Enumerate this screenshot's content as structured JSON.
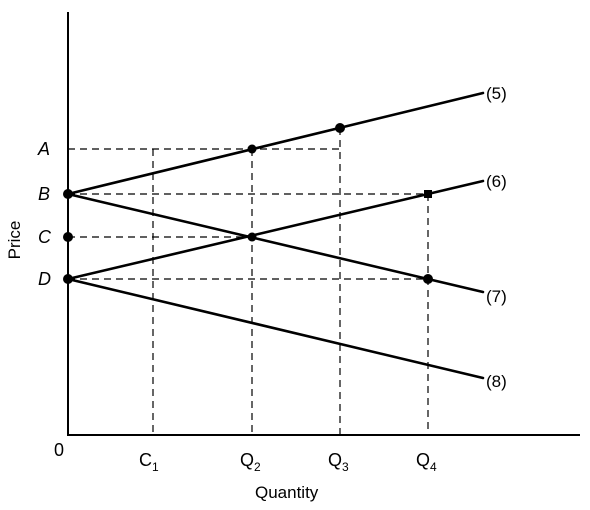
{
  "y_axis_label": "Price",
  "x_axis_label": "Quantity",
  "origin_label": "0",
  "price_levels": [
    {
      "key": "A",
      "label": "A"
    },
    {
      "key": "B",
      "label": "B"
    },
    {
      "key": "C",
      "label": "C"
    },
    {
      "key": "D",
      "label": "D"
    }
  ],
  "quantity_levels": [
    {
      "key": "C1",
      "base": "C",
      "sub": "1"
    },
    {
      "key": "Q2",
      "base": "Q",
      "sub": "2"
    },
    {
      "key": "Q3",
      "base": "Q",
      "sub": "3"
    },
    {
      "key": "Q4",
      "base": "Q",
      "sub": "4"
    }
  ],
  "curves": [
    {
      "key": "5",
      "label": "(5)",
      "from": [
        "0",
        "B"
      ],
      "direction": "up-steep"
    },
    {
      "key": "6",
      "label": "(6)",
      "from": [
        "0",
        "D"
      ],
      "direction": "up"
    },
    {
      "key": "7",
      "label": "(7)",
      "from": [
        "0",
        "B"
      ],
      "direction": "down"
    },
    {
      "key": "8",
      "label": "(8)",
      "from": [
        "0",
        "D"
      ],
      "direction": "down"
    }
  ],
  "marked_points": [
    [
      "0",
      "B"
    ],
    [
      "0",
      "C"
    ],
    [
      "0",
      "D"
    ],
    [
      "Q2",
      "A"
    ],
    [
      "Q2",
      "C"
    ],
    [
      "Q3",
      "A+"
    ],
    [
      "Q4",
      "B"
    ],
    [
      "Q4",
      "D"
    ]
  ],
  "colors": {
    "ink": "#000000",
    "background": "#ffffff"
  }
}
